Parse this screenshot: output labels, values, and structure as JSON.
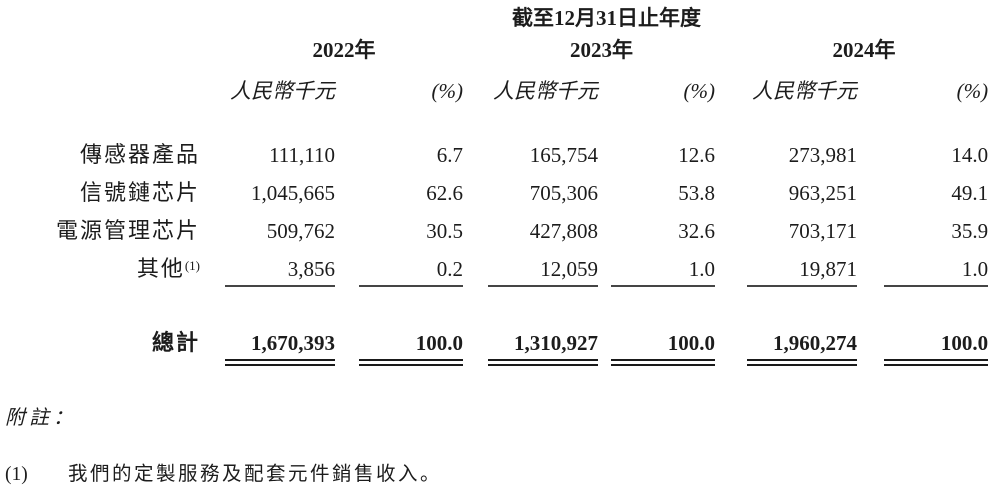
{
  "page": {
    "background_color": "#ffffff",
    "text_color": "#1c1c1c",
    "rule_color": "#454545"
  },
  "table": {
    "period_header": "截至12月31日止年度",
    "columns": [
      {
        "year": "2022年",
        "unit_label": "人民幣千元",
        "pct_label": "(%)"
      },
      {
        "year": "2023年",
        "unit_label": "人民幣千元",
        "pct_label": "(%)"
      },
      {
        "year": "2024年",
        "unit_label": "人民幣千元",
        "pct_label": "(%)"
      }
    ],
    "rows": [
      {
        "label": "傳感器產品",
        "label_sup": "",
        "values": [
          "111,110",
          "6.7",
          "165,754",
          "12.6",
          "273,981",
          "14.0"
        ]
      },
      {
        "label": "信號鏈芯片",
        "label_sup": "",
        "values": [
          "1,045,665",
          "62.6",
          "705,306",
          "53.8",
          "963,251",
          "49.1"
        ]
      },
      {
        "label": "電源管理芯片",
        "label_sup": "",
        "values": [
          "509,762",
          "30.5",
          "427,808",
          "32.6",
          "703,171",
          "35.9"
        ]
      },
      {
        "label": "其他",
        "label_sup": "(1)",
        "values": [
          "3,856",
          "0.2",
          "12,059",
          "1.0",
          "19,871",
          "1.0"
        ]
      }
    ],
    "total_row": {
      "label": "總計",
      "values": [
        "1,670,393",
        "100.0",
        "1,310,927",
        "100.0",
        "1,960,274",
        "100.0"
      ]
    }
  },
  "notes": {
    "heading": "附註：",
    "items": [
      {
        "marker": "(1)",
        "text": "我們的定製服務及配套元件銷售收入。"
      }
    ]
  }
}
